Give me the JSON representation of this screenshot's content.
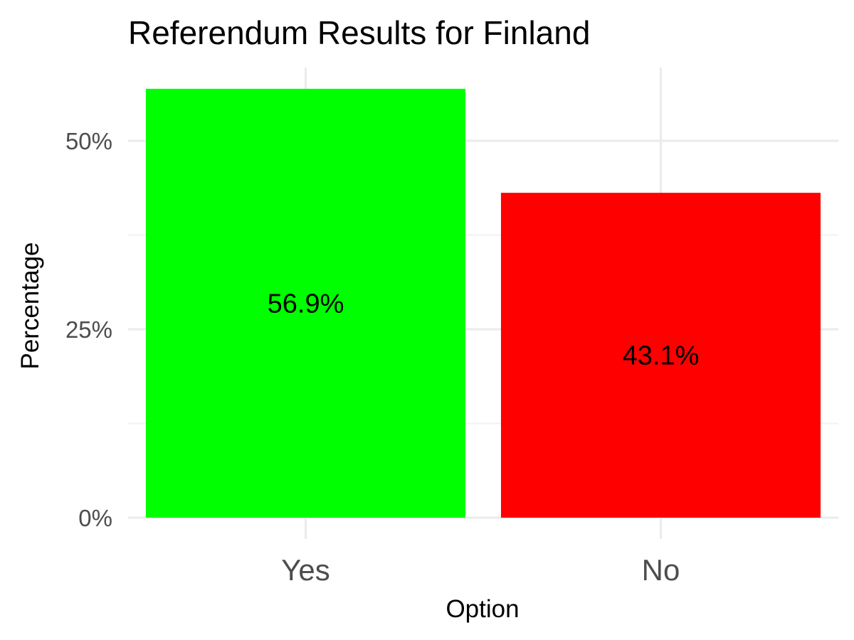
{
  "chart_data": {
    "type": "bar",
    "title": "Referendum Results for Finland",
    "xlabel": "Option",
    "ylabel": "Percentage",
    "categories": [
      "Yes",
      "No"
    ],
    "values": [
      56.9,
      43.1
    ],
    "data_labels": [
      "56.9%",
      "43.1%"
    ],
    "colors": [
      "#00ff00",
      "#ff0000"
    ],
    "ylim": [
      0,
      59.7
    ],
    "yticks": [
      0,
      25,
      50
    ],
    "ytick_labels": [
      "0%",
      "25%",
      "50%"
    ],
    "grid": true,
    "legend": "none"
  }
}
